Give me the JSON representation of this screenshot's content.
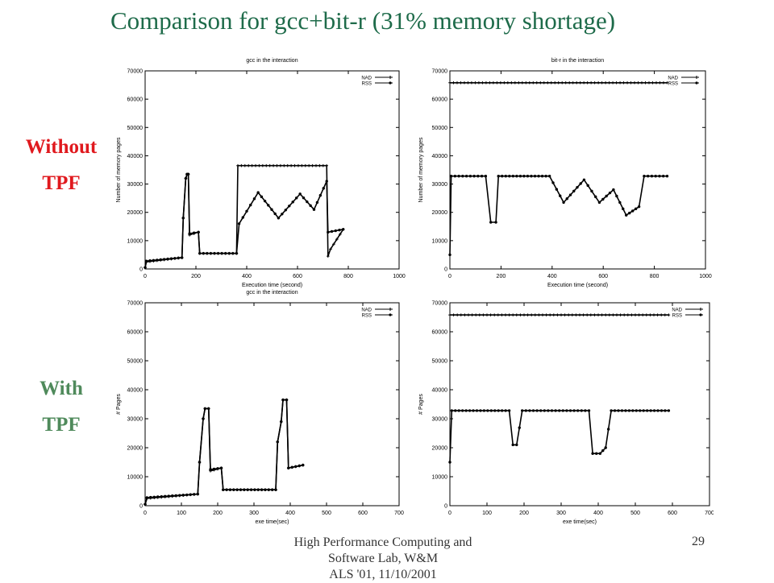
{
  "slide": {
    "title": "Comparison for gcc+bit-r (31% memory shortage)",
    "row_labels": [
      {
        "line1": "Without",
        "line2": "TPF",
        "color": "#e0191e"
      },
      {
        "line1": "With",
        "line2": "TPF",
        "color": "#4f8a5b"
      }
    ],
    "footer": {
      "lines": [
        "High Performance Computing and",
        "Software Lab, W&M",
        "ALS '01,  11/10/2001"
      ],
      "page_number": "29"
    }
  },
  "chart_data": [
    {
      "type": "line",
      "title": "gcc in the interaction",
      "xlabel": "Execution time (second)",
      "ylabel": "Number of memory pages",
      "xlim": [
        0,
        1000
      ],
      "ylim": [
        0,
        70000
      ],
      "xticks": [
        0,
        200,
        400,
        600,
        800,
        1000
      ],
      "yticks": [
        0,
        10000,
        20000,
        30000,
        40000,
        50000,
        60000,
        70000
      ],
      "legend": "top-right",
      "grid": false,
      "series": [
        {
          "name": "NAD",
          "marker": "plus",
          "x": [
            0,
            5,
            145,
            150,
            160,
            165,
            170,
            175,
            210,
            215,
            360,
            365,
            715,
            720,
            730,
            780
          ],
          "y": [
            500,
            2500,
            4000,
            18000,
            32000,
            33500,
            33500,
            12000,
            13000,
            5500,
            5500,
            36500,
            36500,
            4500,
            7000,
            14000
          ]
        },
        {
          "name": "RSS",
          "marker": "dot",
          "x": [
            0,
            5,
            145,
            150,
            160,
            165,
            170,
            175,
            210,
            215,
            360,
            370,
            445,
            525,
            610,
            665,
            715,
            720,
            780
          ],
          "y": [
            500,
            2800,
            4000,
            18000,
            32000,
            33500,
            33500,
            12500,
            13000,
            5500,
            5500,
            16000,
            27000,
            18000,
            26500,
            21000,
            31000,
            13000,
            14000
          ]
        }
      ]
    },
    {
      "type": "line",
      "title": "bit-r in the interaction",
      "xlabel": "Execution time (second)",
      "ylabel": "Number of memory pages",
      "xlim": [
        0,
        1000
      ],
      "ylim": [
        0,
        70000
      ],
      "xticks": [
        0,
        200,
        400,
        600,
        800,
        1000
      ],
      "yticks": [
        0,
        10000,
        20000,
        30000,
        40000,
        50000,
        60000,
        70000
      ],
      "legend": "top-right",
      "grid": false,
      "series": [
        {
          "name": "NAD",
          "marker": "plus",
          "x": [
            0,
            850
          ],
          "y": [
            65800,
            65800
          ]
        },
        {
          "name": "RSS",
          "marker": "dot",
          "x": [
            0,
            5,
            140,
            160,
            180,
            190,
            390,
            445,
            525,
            585,
            640,
            690,
            740,
            760,
            850
          ],
          "y": [
            5000,
            32800,
            32800,
            16500,
            16500,
            32800,
            32800,
            23500,
            31500,
            23500,
            28000,
            19000,
            22000,
            32800,
            32800
          ]
        }
      ]
    },
    {
      "type": "line",
      "title": "gcc in the interaction",
      "xlabel": "exe time(sec)",
      "ylabel": "# Pages",
      "xlim": [
        0,
        700
      ],
      "ylim": [
        0,
        70000
      ],
      "xticks": [
        0,
        100,
        200,
        300,
        400,
        500,
        600,
        700
      ],
      "yticks": [
        0,
        10000,
        20000,
        30000,
        40000,
        50000,
        60000,
        70000
      ],
      "legend": "top-right",
      "grid": false,
      "series": [
        {
          "name": "NAD",
          "marker": "plus",
          "x": [
            0,
            5,
            145,
            150,
            160,
            165,
            175,
            180,
            210,
            215,
            360,
            365,
            375,
            380,
            390,
            395,
            435
          ],
          "y": [
            500,
            2500,
            4000,
            15000,
            30000,
            33500,
            33500,
            12000,
            13000,
            5500,
            5500,
            22000,
            29000,
            36500,
            36500,
            13000,
            14000
          ]
        },
        {
          "name": "RSS",
          "marker": "dot",
          "x": [
            0,
            5,
            145,
            150,
            160,
            165,
            175,
            180,
            210,
            215,
            360,
            365,
            375,
            380,
            390,
            395,
            435
          ],
          "y": [
            500,
            2800,
            4000,
            15000,
            30000,
            33500,
            33500,
            12500,
            13000,
            5500,
            5500,
            22000,
            29000,
            36500,
            36500,
            13000,
            14000
          ]
        }
      ]
    },
    {
      "type": "line",
      "title": "",
      "xlabel": "exe time(sec)",
      "ylabel": "# Pages",
      "xlim": [
        0,
        700
      ],
      "ylim": [
        0,
        70000
      ],
      "xticks": [
        0,
        100,
        200,
        300,
        400,
        500,
        600,
        700
      ],
      "yticks": [
        0,
        10000,
        20000,
        30000,
        40000,
        50000,
        60000,
        70000
      ],
      "legend": "top-right",
      "grid": false,
      "series": [
        {
          "name": "NAD",
          "marker": "plus",
          "x": [
            0,
            590
          ],
          "y": [
            65800,
            65800
          ]
        },
        {
          "name": "RSS",
          "marker": "dot",
          "x": [
            0,
            5,
            160,
            170,
            180,
            195,
            375,
            385,
            405,
            420,
            435,
            590
          ],
          "y": [
            15000,
            32800,
            32800,
            21000,
            21000,
            32800,
            32800,
            18000,
            18000,
            20000,
            32800,
            32800
          ]
        }
      ]
    }
  ]
}
